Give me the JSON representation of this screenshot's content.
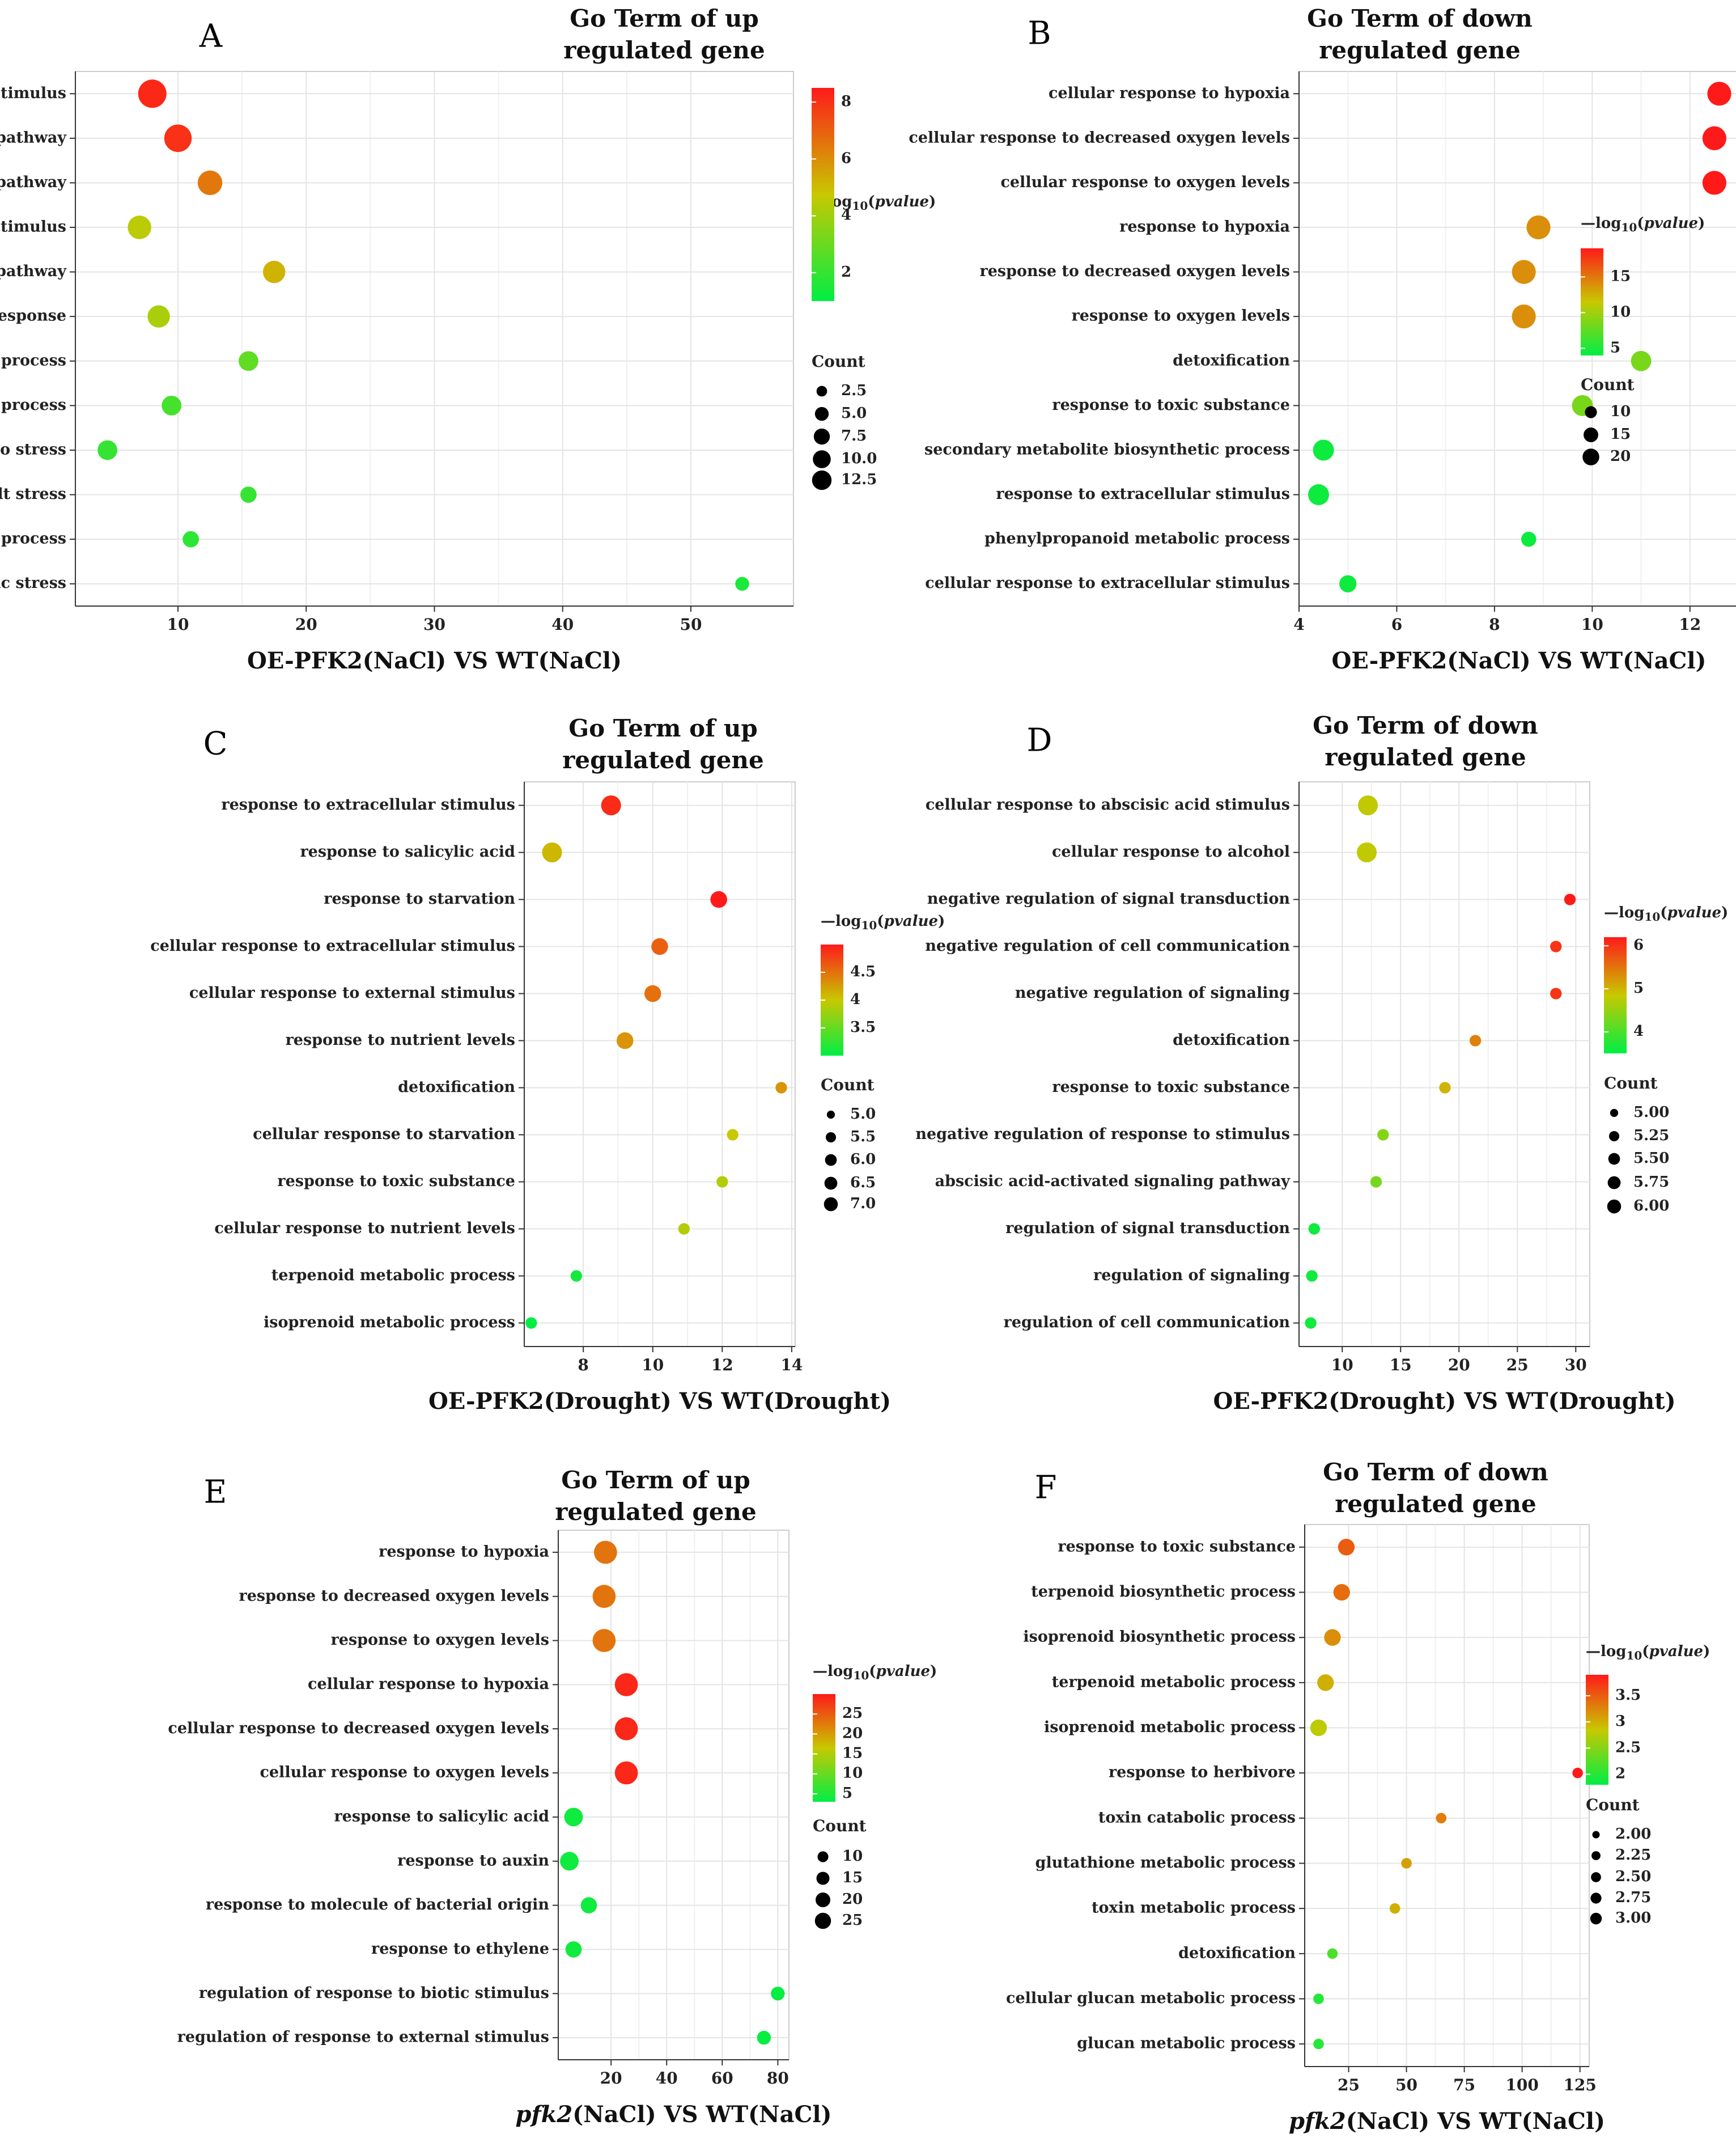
{
  "figure": {
    "count_title": "Count",
    "pvalue_title_prefix": "—log",
    "pvalue_title_sub": "10",
    "pvalue_title_italic": "pvalue",
    "colors": {
      "low": "#00ee44",
      "mid": "#c8c800",
      "high": "#ff1a1a",
      "grid": "#e4e4e4",
      "axis": "#333333"
    }
  },
  "chart_data": [
    {
      "id": "A",
      "type": "scatter",
      "panel_label": "A",
      "title": [
        "Go Term of up",
        "regulated gene"
      ],
      "xlabel": "OE-PFK2(NaCl) VS WT(NaCl)",
      "xlabel_italic": "",
      "xlim": [
        2,
        58
      ],
      "xticks": [
        10,
        20,
        30,
        40,
        50
      ],
      "color_range": [
        1,
        8.5
      ],
      "color_ticks": [
        2,
        4,
        6,
        8
      ],
      "size_range": [
        1,
        13
      ],
      "size_ticks": [
        "2.5",
        "5.0",
        "7.5",
        "10.0",
        "12.5"
      ],
      "terms": [
        {
          "label": "cellular response to abscisic acid stimulus",
          "x": 8,
          "count": 13,
          "log10p": 8.2
        },
        {
          "label": "abscisic acid-activated signaling pathway",
          "x": 10,
          "count": 12,
          "log10p": 8.0
        },
        {
          "label": "regulation of abscisic acid-activated signaling pathway",
          "x": 12.5,
          "count": 9,
          "log10p": 6.5
        },
        {
          "label": "cellular response to salicylic acid stimulus",
          "x": 7,
          "count": 8,
          "log10p": 4.5
        },
        {
          "label": "negative  regulation of abscisic acid-activated signaling pathway",
          "x": 17.5,
          "count": 7,
          "log10p": 5.2
        },
        {
          "label": "positive regulation of defense response",
          "x": 8.5,
          "count": 7,
          "log10p": 4.2
        },
        {
          "label": "abscisic acid biosynthetic process",
          "x": 15.5,
          "count": 5,
          "log10p": 2.8
        },
        {
          "label": "abscisic acid metabolic process",
          "x": 9.5,
          "count": 5,
          "log10p": 2.3
        },
        {
          "label": "regulation of cellular response to stress",
          "x": 4.5,
          "count": 5,
          "log10p": 2.0
        },
        {
          "label": "negative regulation of response to salt stress",
          "x": 15.5,
          "count": 3,
          "log10p": 2.0
        },
        {
          "label": "regulation of abscisic acid biosynthetic process",
          "x": 11,
          "count": 3,
          "log10p": 1.8
        },
        {
          "label": "regulation of cellular response to osmotic stress",
          "x": 54,
          "count": 2,
          "log10p": 1.5
        }
      ]
    },
    {
      "id": "B",
      "type": "scatter",
      "panel_label": "B",
      "title": [
        "Go Term of down",
        "regulated gene"
      ],
      "xlabel": "OE-PFK2(NaCl) VS WT(NaCl)",
      "xlabel_italic": "",
      "xlim": [
        4,
        13
      ],
      "xticks": [
        4,
        6,
        8,
        10,
        12
      ],
      "color_range": [
        4,
        19
      ],
      "color_ticks": [
        5,
        10,
        15
      ],
      "size_range": [
        5,
        22
      ],
      "size_ticks": [
        "10",
        "15",
        "20"
      ],
      "terms": [
        {
          "label": "cellular response to hypoxia",
          "x": 12.6,
          "count": 20,
          "log10p": 19
        },
        {
          "label": "cellular response to decreased oxygen levels",
          "x": 12.5,
          "count": 20,
          "log10p": 19
        },
        {
          "label": "cellular response to oxygen levels",
          "x": 12.5,
          "count": 20,
          "log10p": 19
        },
        {
          "label": "response to hypoxia",
          "x": 8.9,
          "count": 20,
          "log10p": 14
        },
        {
          "label": "response to decreased oxygen levels",
          "x": 8.6,
          "count": 20,
          "log10p": 14
        },
        {
          "label": "response to oxygen levels",
          "x": 8.6,
          "count": 20,
          "log10p": 14
        },
        {
          "label": "detoxification",
          "x": 11.0,
          "count": 14,
          "log10p": 8.5
        },
        {
          "label": "response to toxic substance",
          "x": 9.8,
          "count": 15,
          "log10p": 8.5
        },
        {
          "label": "secondary metabolite biosynthetic process",
          "x": 4.5,
          "count": 15,
          "log10p": 4.5
        },
        {
          "label": "response to extracellular stimulus",
          "x": 4.4,
          "count": 15,
          "log10p": 4.5
        },
        {
          "label": "phenylpropanoid metabolic process",
          "x": 8.7,
          "count": 8,
          "log10p": 4.5
        },
        {
          "label": "cellular response to extracellular stimulus",
          "x": 5.0,
          "count": 10,
          "log10p": 4.5
        }
      ]
    },
    {
      "id": "C",
      "type": "scatter",
      "panel_label": "C",
      "title": [
        "Go Term of up",
        "regulated gene"
      ],
      "xlabel": "OE-PFK2(Drought) VS WT(Drought)",
      "xlabel_italic": "",
      "xlim": [
        6.3,
        14.1
      ],
      "xticks": [
        8,
        10,
        12,
        14
      ],
      "color_range": [
        3.0,
        5.0
      ],
      "color_ticks": [
        3.5,
        4.0,
        4.5
      ],
      "size_range": [
        4.8,
        7.2
      ],
      "size_ticks": [
        "5.0",
        "5.5",
        "6.0",
        "6.5",
        "7.0"
      ],
      "terms": [
        {
          "label": "response to extracellular stimulus",
          "x": 8.8,
          "count": 7,
          "log10p": 4.9
        },
        {
          "label": "response to salicylic acid",
          "x": 7.1,
          "count": 7,
          "log10p": 4.1
        },
        {
          "label": "response to starvation",
          "x": 11.9,
          "count": 6,
          "log10p": 5.0
        },
        {
          "label": "cellular response to extracellular stimulus",
          "x": 10.2,
          "count": 6,
          "log10p": 4.6
        },
        {
          "label": "cellular response to external stimulus",
          "x": 10.0,
          "count": 6,
          "log10p": 4.5
        },
        {
          "label": "response to nutrient levels",
          "x": 9.2,
          "count": 6,
          "log10p": 4.3
        },
        {
          "label": "detoxification",
          "x": 13.7,
          "count": 5,
          "log10p": 4.3
        },
        {
          "label": "cellular response to starvation",
          "x": 12.3,
          "count": 5,
          "log10p": 4.0
        },
        {
          "label": "response to toxic substance",
          "x": 12.0,
          "count": 5,
          "log10p": 3.9
        },
        {
          "label": "cellular response to nutrient levels",
          "x": 10.9,
          "count": 5,
          "log10p": 3.9
        },
        {
          "label": "terpenoid metabolic process",
          "x": 7.8,
          "count": 5,
          "log10p": 3.1
        },
        {
          "label": "isoprenoid metabolic process",
          "x": 6.5,
          "count": 5,
          "log10p": 3.0
        }
      ]
    },
    {
      "id": "D",
      "type": "scatter",
      "panel_label": "D",
      "title": [
        "Go Term of down",
        "regulated gene"
      ],
      "xlabel": "OE-PFK2(Drought) VS WT(Drought)",
      "xlabel_italic": "",
      "xlim": [
        6.3,
        31.2
      ],
      "xticks": [
        10,
        15,
        20,
        25,
        30
      ],
      "color_range": [
        3.5,
        6.2
      ],
      "color_ticks": [
        4,
        5,
        6
      ],
      "size_range": [
        4.9,
        6.1
      ],
      "size_ticks": [
        "5.00",
        "5.25",
        "5.50",
        "5.75",
        "6.00"
      ],
      "terms": [
        {
          "label": "cellular response to abscisic acid stimulus",
          "x": 12.2,
          "count": 6,
          "log10p": 4.8
        },
        {
          "label": "cellular response to alcohol",
          "x": 12.1,
          "count": 6,
          "log10p": 4.8
        },
        {
          "label": "negative regulation of signal transduction",
          "x": 29.5,
          "count": 5,
          "log10p": 6.2
        },
        {
          "label": "negative regulation of cell communication",
          "x": 28.3,
          "count": 5,
          "log10p": 6.0
        },
        {
          "label": "negative regulation of signaling",
          "x": 28.3,
          "count": 5,
          "log10p": 6.0
        },
        {
          "label": "detoxification",
          "x": 21.4,
          "count": 5,
          "log10p": 5.4
        },
        {
          "label": "response to toxic substance",
          "x": 18.8,
          "count": 5,
          "log10p": 5.0
        },
        {
          "label": "negative regulation of response to stimulus",
          "x": 13.5,
          "count": 5,
          "log10p": 4.4
        },
        {
          "label": "abscisic acid-activated signaling pathway",
          "x": 12.9,
          "count": 5,
          "log10p": 4.3
        },
        {
          "label": "regulation of signal transduction",
          "x": 7.6,
          "count": 5,
          "log10p": 3.6
        },
        {
          "label": "regulation of signaling",
          "x": 7.4,
          "count": 5,
          "log10p": 3.6
        },
        {
          "label": "regulation of cell communication",
          "x": 7.3,
          "count": 5,
          "log10p": 3.6
        }
      ]
    },
    {
      "id": "E",
      "type": "scatter",
      "panel_label": "E",
      "title": [
        "Go Term of up",
        "regulated gene"
      ],
      "xlabel": "(NaCl) VS WT(NaCl)",
      "xlabel_italic": "pfk2",
      "xlim": [
        1,
        84
      ],
      "xticks": [
        20,
        40,
        60,
        80
      ],
      "color_range": [
        3,
        30
      ],
      "color_ticks": [
        5,
        10,
        15,
        20,
        25
      ],
      "size_range": [
        5,
        27
      ],
      "size_ticks": [
        "10",
        "15",
        "20",
        "25"
      ],
      "terms": [
        {
          "label": "response to hypoxia",
          "x": 18,
          "count": 25,
          "log10p": 23
        },
        {
          "label": "response to decreased oxygen levels",
          "x": 17.5,
          "count": 25,
          "log10p": 23
        },
        {
          "label": "response to oxygen levels",
          "x": 17.5,
          "count": 25,
          "log10p": 23
        },
        {
          "label": "cellular response to hypoxia",
          "x": 25.5,
          "count": 25,
          "log10p": 29
        },
        {
          "label": "cellular response to decreased oxygen levels",
          "x": 25.5,
          "count": 25,
          "log10p": 29
        },
        {
          "label": "cellular response to oxygen levels",
          "x": 25.5,
          "count": 25,
          "log10p": 29
        },
        {
          "label": "response to salicylic acid",
          "x": 6.5,
          "count": 15,
          "log10p": 4
        },
        {
          "label": "response to auxin",
          "x": 5,
          "count": 15,
          "log10p": 4
        },
        {
          "label": "response to molecule of bacterial origin",
          "x": 12,
          "count": 11,
          "log10p": 4
        },
        {
          "label": "response to ethylene",
          "x": 6.5,
          "count": 11,
          "log10p": 4
        },
        {
          "label": "regulation of response to biotic stimulus",
          "x": 80,
          "count": 8,
          "log10p": 3.5
        },
        {
          "label": "regulation of response to external stimulus",
          "x": 75,
          "count": 8,
          "log10p": 3.5
        }
      ]
    },
    {
      "id": "F",
      "type": "scatter",
      "panel_label": "F",
      "title": [
        "Go Term of down",
        "regulated gene"
      ],
      "xlabel": "(NaCl) VS WT(NaCl)",
      "xlabel_italic": "pfk2",
      "xlim": [
        6,
        129
      ],
      "xticks": [
        25,
        50,
        75,
        100,
        125
      ],
      "color_range": [
        1.8,
        3.9
      ],
      "color_ticks": [
        2.0,
        2.5,
        3.0,
        3.5
      ],
      "size_range": [
        1.9,
        3.1
      ],
      "size_ticks": [
        "2.00",
        "2.25",
        "2.50",
        "2.75",
        "3.00"
      ],
      "terms": [
        {
          "label": "response to toxic substance",
          "x": 24,
          "count": 3,
          "log10p": 3.5
        },
        {
          "label": "terpenoid biosynthetic process",
          "x": 22,
          "count": 3,
          "log10p": 3.4
        },
        {
          "label": "isoprenoid biosynthetic process",
          "x": 18,
          "count": 3,
          "log10p": 3.2
        },
        {
          "label": "terpenoid metabolic process",
          "x": 15,
          "count": 3,
          "log10p": 3.0
        },
        {
          "label": "isoprenoid metabolic process",
          "x": 12,
          "count": 3,
          "log10p": 2.8
        },
        {
          "label": "response to herbivore",
          "x": 124,
          "count": 2,
          "log10p": 3.9
        },
        {
          "label": "toxin catabolic process",
          "x": 65,
          "count": 2,
          "log10p": 3.3
        },
        {
          "label": "glutathione metabolic process",
          "x": 50,
          "count": 2,
          "log10p": 3.1
        },
        {
          "label": "toxin metabolic process",
          "x": 45,
          "count": 2,
          "log10p": 3.0
        },
        {
          "label": "detoxification",
          "x": 18,
          "count": 2,
          "log10p": 2.2
        },
        {
          "label": "cellular glucan metabolic process",
          "x": 12,
          "count": 2,
          "log10p": 2.0
        },
        {
          "label": "glucan metabolic process",
          "x": 12,
          "count": 2,
          "log10p": 2.0
        }
      ]
    }
  ]
}
